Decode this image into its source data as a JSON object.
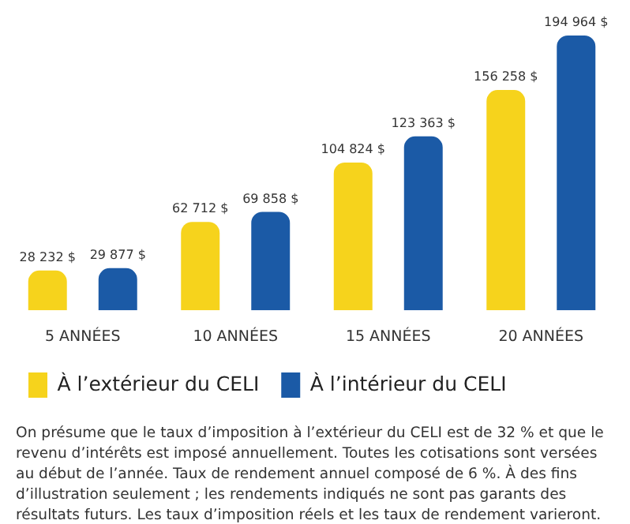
{
  "chart_data": {
    "type": "bar",
    "categories": [
      "5 ANNÉES",
      "10 ANNÉES",
      "15 ANNÉES",
      "20 ANNÉES"
    ],
    "series": [
      {
        "name": "À l’extérieur du CELI",
        "color": "#f6d31c",
        "values": [
          28232,
          62712,
          104824,
          156258
        ],
        "value_labels": [
          "28 232 $",
          "62 712 $",
          "104 824 $",
          "156 258 $"
        ]
      },
      {
        "name": "À l’intérieur du CELI",
        "color": "#1b5aa6",
        "values": [
          29877,
          69858,
          123363,
          194964
        ],
        "value_labels": [
          "29 877 $",
          "69 858 $",
          "123 363 $",
          "194 964 $"
        ]
      }
    ],
    "legend": "bottom",
    "grid": false,
    "annotations": [
      "On présume que le taux d’imposition à l’extérieur du CELI est de 32 % et que le revenu d’intérêts est imposé annuellement. Toutes les cotisations sont versées au début de l’année. Taux de rendement annuel composé de 6 %. À des fins d’illustration seulement ; les rendements indiqués ne sont pas garants des résultats futurs. Les taux d’imposition réels et les taux de rendement varieront."
    ]
  }
}
